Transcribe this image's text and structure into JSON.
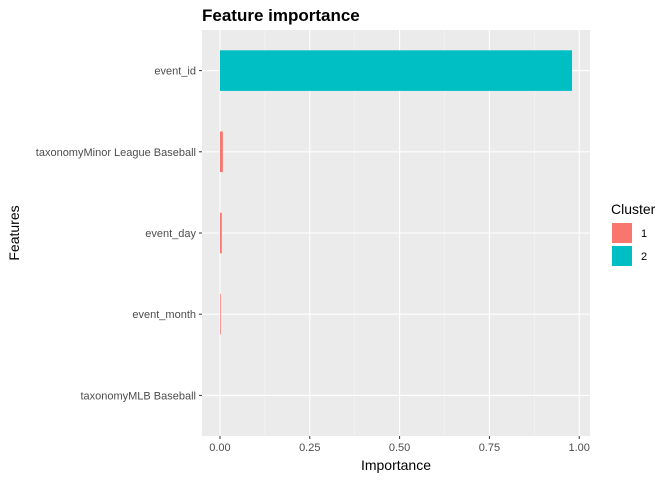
{
  "chart_data": {
    "type": "bar",
    "orientation": "horizontal",
    "title": "Feature importance",
    "xlabel": "Importance",
    "ylabel": "Features",
    "xlim": [
      -0.05,
      1.03
    ],
    "x_ticks": [
      "0.00",
      "0.25",
      "0.50",
      "0.75",
      "1.00"
    ],
    "x_tick_values": [
      0,
      0.25,
      0.5,
      0.75,
      1.0
    ],
    "grid": true,
    "legend_position": "right",
    "legend_title": "Cluster",
    "legend": [
      {
        "label": "1",
        "color": "#F8766D"
      },
      {
        "label": "2",
        "color": "#00BFC4"
      }
    ],
    "categories": [
      "event_id",
      "taxonomyMinor League Baseball",
      "event_day",
      "event_month",
      "taxonomyMLB Baseball"
    ],
    "values": [
      0.98,
      0.008,
      0.005,
      0.002,
      0.0
    ],
    "clusters": [
      "2",
      "1",
      "1",
      "1",
      "1"
    ]
  }
}
